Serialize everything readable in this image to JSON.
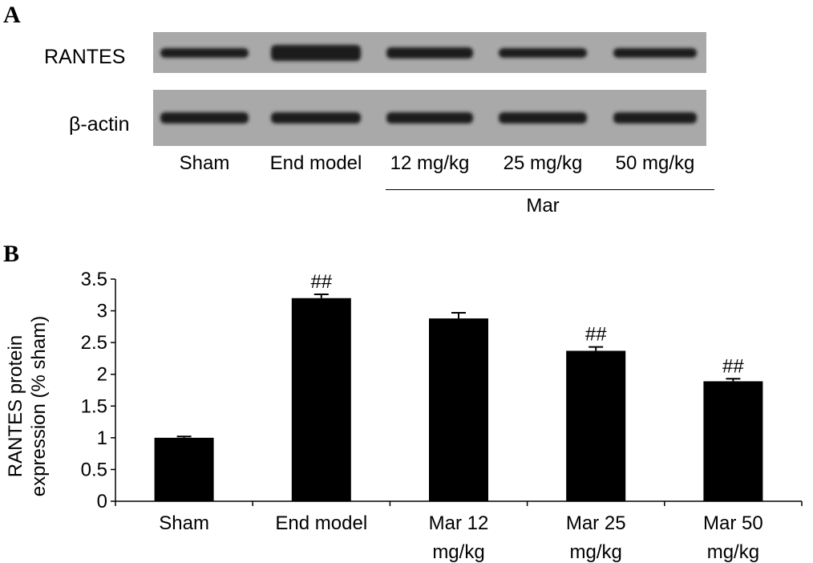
{
  "panel_a": {
    "letter": "A",
    "rows": [
      {
        "label": "RANTES"
      },
      {
        "label": "β-actin"
      }
    ],
    "lanes": [
      "Sham",
      "End model",
      "12 mg/kg",
      "25 mg/kg",
      "50 mg/kg"
    ],
    "group_label": "Mar",
    "band_color": "#1a1a1a",
    "membrane_color": "#a9a9a9"
  },
  "panel_b": {
    "letter": "B"
  },
  "chart_data": {
    "type": "bar",
    "categories": [
      "Sham",
      "End model",
      "Mar 12 mg/kg",
      "Mar 25 mg/kg",
      "Mar 50 mg/kg"
    ],
    "category_lines": [
      [
        "Sham"
      ],
      [
        "End model"
      ],
      [
        "Mar 12",
        "mg/kg"
      ],
      [
        "Mar 25",
        "mg/kg"
      ],
      [
        "Mar 50",
        "mg/kg"
      ]
    ],
    "values": [
      1.0,
      3.2,
      2.88,
      2.37,
      1.89
    ],
    "errors": [
      0.02,
      0.06,
      0.09,
      0.06,
      0.04
    ],
    "annotations": [
      "",
      "##",
      "",
      "##",
      "##"
    ],
    "ylabel": [
      "RANTES protein",
      "expression (% sham)"
    ],
    "ylim": [
      0,
      3.5
    ],
    "yticks": [
      "0",
      "0.5",
      "1",
      "1.5",
      "2",
      "2.5",
      "3",
      "3.5"
    ],
    "bar_color": "#000000",
    "grid": false
  }
}
